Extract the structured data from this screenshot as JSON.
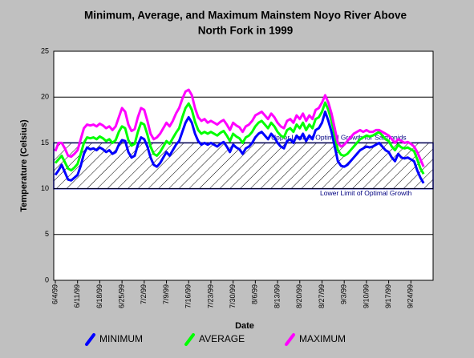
{
  "chart_data": {
    "type": "line",
    "title": [
      "Minimum, Average, and Maximum Mainstem Noyo River Above",
      "North Fork in 1999"
    ],
    "x_label": "Date",
    "y_label": "Temperature (Celsius)",
    "ylim": [
      0,
      25
    ],
    "yticks": [
      0,
      5,
      10,
      15,
      20,
      25
    ],
    "grid": true,
    "optimal_range": {
      "low": 10,
      "high": 15,
      "color": "#0000ff",
      "upper_label": "Upper Limit of Optimal Growth for Salmonids",
      "lower_label": "Lower Limit of Optimal Growth"
    },
    "categories": [
      "6/4/99",
      null,
      null,
      null,
      null,
      null,
      null,
      "6/11/99",
      null,
      null,
      null,
      null,
      null,
      null,
      "6/18/99",
      null,
      null,
      null,
      null,
      null,
      null,
      "6/25/99",
      null,
      null,
      null,
      null,
      null,
      null,
      "7/2/99",
      null,
      null,
      null,
      null,
      null,
      null,
      "7/9/99",
      null,
      null,
      null,
      null,
      null,
      null,
      "7/16/99",
      null,
      null,
      null,
      null,
      null,
      null,
      "7/23/99",
      null,
      null,
      null,
      null,
      null,
      null,
      "7/30/99",
      null,
      null,
      null,
      null,
      null,
      null,
      "8/6/99",
      null,
      null,
      null,
      null,
      null,
      null,
      "8/13/99",
      null,
      null,
      null,
      null,
      null,
      null,
      "8/20/99",
      null,
      null,
      null,
      null,
      null,
      null,
      "8/27/99",
      null,
      null,
      null,
      null,
      null,
      null,
      "9/3/99",
      null,
      null,
      null,
      null,
      null,
      null,
      "9/10/99",
      null,
      null,
      null,
      null,
      null,
      null,
      "9/17/99",
      null,
      null,
      null,
      null,
      null,
      null,
      "9/24/99",
      null,
      null,
      null,
      null
    ],
    "legend": "bottom",
    "series": [
      {
        "name": "MINIMUM",
        "color": "#0000ff",
        "values": [
          11.5,
          12.0,
          12.6,
          11.8,
          11.0,
          10.9,
          11.2,
          11.5,
          12.5,
          13.8,
          14.5,
          14.3,
          14.4,
          14.2,
          14.5,
          14.3,
          14.0,
          14.2,
          13.8,
          14.0,
          14.8,
          15.3,
          15.2,
          14.0,
          13.4,
          13.6,
          14.8,
          15.6,
          15.4,
          14.6,
          13.4,
          12.6,
          12.4,
          12.8,
          13.4,
          14.0,
          13.6,
          14.2,
          14.8,
          15.2,
          16.2,
          17.2,
          17.8,
          17.2,
          16.0,
          15.2,
          14.8,
          15.0,
          14.8,
          15.0,
          14.8,
          14.6,
          14.9,
          15.1,
          14.6,
          14.0,
          14.8,
          14.5,
          14.3,
          13.8,
          14.4,
          14.6,
          15.0,
          15.6,
          16.0,
          16.2,
          15.8,
          15.4,
          16.0,
          15.6,
          15.0,
          14.6,
          14.4,
          15.2,
          15.4,
          15.0,
          15.8,
          15.4,
          16.0,
          15.2,
          15.8,
          15.4,
          16.4,
          16.6,
          17.2,
          18.4,
          17.4,
          16.2,
          14.6,
          13.0,
          12.5,
          12.4,
          12.6,
          13.0,
          13.4,
          13.8,
          14.2,
          14.4,
          14.6,
          14.5,
          14.6,
          14.8,
          15.0,
          14.6,
          14.2,
          14.0,
          13.4,
          13.0,
          13.8,
          13.4,
          13.3,
          13.4,
          13.2,
          13.0,
          12.0,
          11.2,
          10.6
        ]
      },
      {
        "name": "AVERAGE",
        "color": "#00ff00",
        "values": [
          12.8,
          13.2,
          13.6,
          12.9,
          12.2,
          12.0,
          12.3,
          12.7,
          13.8,
          15.0,
          15.6,
          15.5,
          15.6,
          15.4,
          15.7,
          15.5,
          15.2,
          15.4,
          15.0,
          15.3,
          16.2,
          16.8,
          16.6,
          15.3,
          14.7,
          14.9,
          16.2,
          17.2,
          17.0,
          15.9,
          14.6,
          13.8,
          13.6,
          14.0,
          14.6,
          15.2,
          14.9,
          15.5,
          16.1,
          16.6,
          17.8,
          18.8,
          19.3,
          18.6,
          17.3,
          16.4,
          16.0,
          16.2,
          16.0,
          16.2,
          16.0,
          15.8,
          16.1,
          16.3,
          15.8,
          15.2,
          16.0,
          15.7,
          15.5,
          15.0,
          15.6,
          15.8,
          16.2,
          16.8,
          17.2,
          17.4,
          17.0,
          16.6,
          17.2,
          16.8,
          16.2,
          15.8,
          15.6,
          16.4,
          16.6,
          16.2,
          17.0,
          16.6,
          17.2,
          16.4,
          17.0,
          16.6,
          17.6,
          17.8,
          18.4,
          19.4,
          18.6,
          17.4,
          15.8,
          14.2,
          13.7,
          13.6,
          13.8,
          14.2,
          14.6,
          15.0,
          15.4,
          15.6,
          15.8,
          15.7,
          15.8,
          16.0,
          16.2,
          15.8,
          15.4,
          15.2,
          14.6,
          14.2,
          14.8,
          14.5,
          14.4,
          14.5,
          14.3,
          14.1,
          13.2,
          12.2,
          11.6
        ]
      },
      {
        "name": "MAXIMUM",
        "color": "#ff00ff",
        "values": [
          14.1,
          15.0,
          15.0,
          14.4,
          13.6,
          13.5,
          13.8,
          14.2,
          15.4,
          16.6,
          17.0,
          16.9,
          17.0,
          16.8,
          17.1,
          16.9,
          16.6,
          16.8,
          16.4,
          16.8,
          17.8,
          18.8,
          18.4,
          17.0,
          16.3,
          16.5,
          17.8,
          18.8,
          18.6,
          17.4,
          16.0,
          15.4,
          15.6,
          16.0,
          16.6,
          17.2,
          16.8,
          17.4,
          18.2,
          18.8,
          19.8,
          20.6,
          20.8,
          20.2,
          18.8,
          17.8,
          17.4,
          17.6,
          17.2,
          17.4,
          17.2,
          17.0,
          17.3,
          17.5,
          17.0,
          16.4,
          17.2,
          16.9,
          16.7,
          16.2,
          16.8,
          17.0,
          17.4,
          18.0,
          18.2,
          18.4,
          18.0,
          17.6,
          18.2,
          17.8,
          17.2,
          16.8,
          16.6,
          17.4,
          17.6,
          17.2,
          18.0,
          17.6,
          18.2,
          17.4,
          18.0,
          17.6,
          18.6,
          18.8,
          19.4,
          20.2,
          19.4,
          18.2,
          16.6,
          15.0,
          14.6,
          14.8,
          15.2,
          15.6,
          16.0,
          16.2,
          16.4,
          16.2,
          16.4,
          16.2,
          16.2,
          16.4,
          16.4,
          16.2,
          16.0,
          15.8,
          15.4,
          15.0,
          15.4,
          15.2,
          15.0,
          15.1,
          14.9,
          14.6,
          14.0,
          13.2,
          12.4
        ]
      }
    ]
  }
}
